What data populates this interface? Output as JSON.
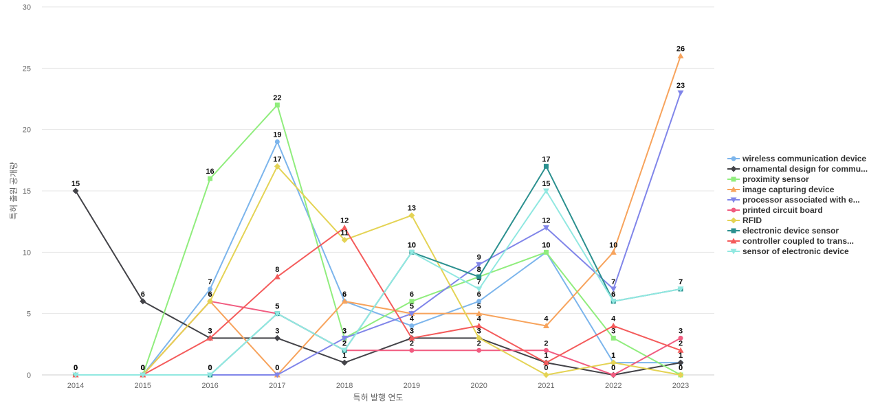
{
  "chart_data": {
    "type": "line",
    "title": "",
    "xlabel": "특허 발행 연도",
    "ylabel": "특허 출원 공개량",
    "x": [
      "2014",
      "2015",
      "2016",
      "2017",
      "2018",
      "2019",
      "2020",
      "2021",
      "2022",
      "2023"
    ],
    "ylim": [
      0,
      30
    ],
    "yticks": [
      "0",
      "5",
      "10",
      "15",
      "20",
      "25",
      "30"
    ],
    "grid": true,
    "legend_position": "right",
    "series": [
      {
        "name": "wireless communication device",
        "color": "#7cb5ec",
        "marker": "circle",
        "values": [
          0,
          0,
          7,
          19,
          6,
          4,
          6,
          10,
          1,
          1
        ]
      },
      {
        "name": "ornamental design for commu...",
        "color": "#434348",
        "marker": "diamond",
        "values": [
          15,
          6,
          3,
          3,
          1,
          3,
          3,
          1,
          0,
          1
        ]
      },
      {
        "name": "proximity sensor",
        "color": "#90ed7d",
        "marker": "square",
        "values": [
          0,
          0,
          16,
          22,
          3,
          6,
          8,
          10,
          3,
          0
        ]
      },
      {
        "name": "image capturing device",
        "color": "#f7a35c",
        "marker": "triangle",
        "values": [
          0,
          0,
          6,
          0,
          6,
          5,
          5,
          4,
          10,
          26
        ]
      },
      {
        "name": "processor associated with e...",
        "color": "#8085e9",
        "marker": "triangle-down",
        "values": [
          0,
          0,
          0,
          0,
          3,
          5,
          9,
          12,
          7,
          23
        ]
      },
      {
        "name": "printed circuit board",
        "color": "#f15c80",
        "marker": "circle",
        "values": [
          0,
          0,
          6,
          5,
          2,
          2,
          2,
          2,
          0,
          3
        ]
      },
      {
        "name": "RFID",
        "color": "#e4d354",
        "marker": "diamond",
        "values": [
          0,
          0,
          6,
          17,
          11,
          13,
          3,
          0,
          1,
          0
        ]
      },
      {
        "name": "electronic device sensor",
        "color": "#2b908f",
        "marker": "square",
        "values": [
          0,
          0,
          0,
          5,
          2,
          10,
          8,
          17,
          6,
          7
        ]
      },
      {
        "name": "controller coupled to trans...",
        "color": "#f45b5b",
        "marker": "triangle",
        "values": [
          0,
          0,
          3,
          8,
          12,
          3,
          4,
          1,
          4,
          2
        ]
      },
      {
        "name": "sensor of electronic device",
        "color": "#91e8e1",
        "marker": "triangle-down",
        "values": [
          0,
          0,
          0,
          5,
          2,
          10,
          7,
          15,
          6,
          7
        ]
      }
    ]
  }
}
